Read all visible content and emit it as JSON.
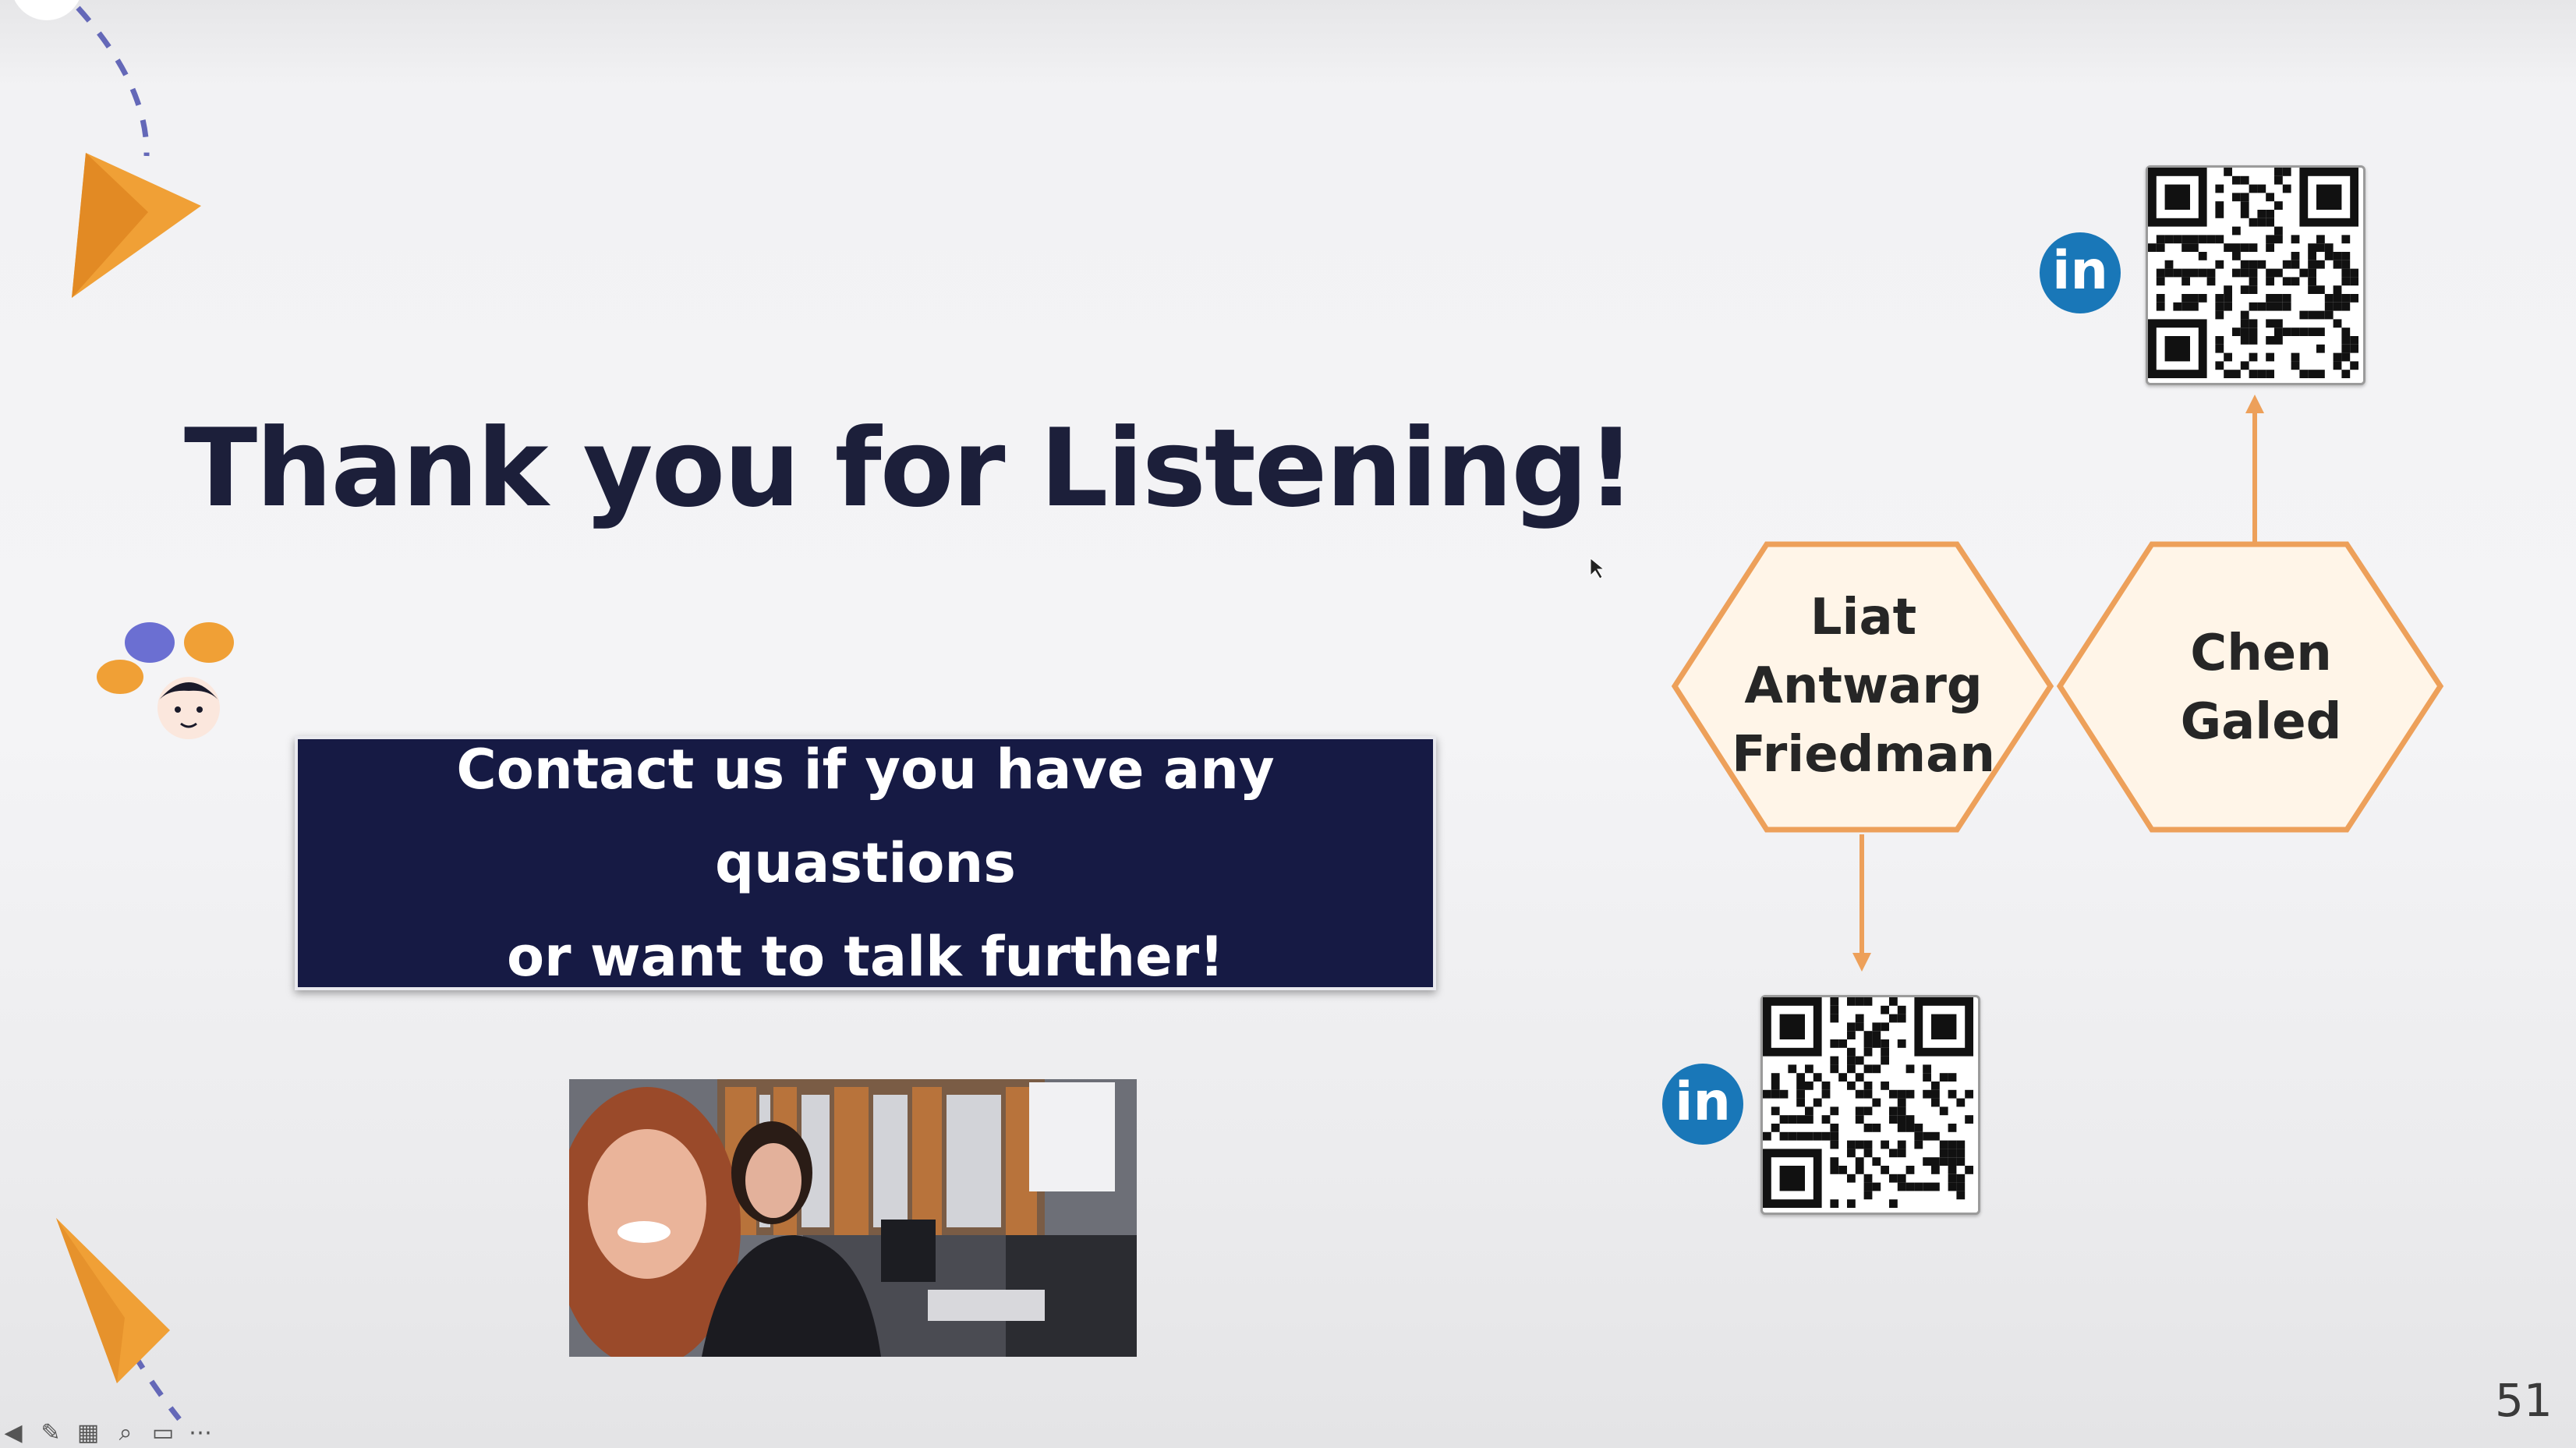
{
  "slide": {
    "title": "Thank you for Listening!",
    "contact_line_1": "Contact us if you have any quastions",
    "contact_line_2": "or want to talk further!",
    "slide_number": "51"
  },
  "people": [
    {
      "name_lines": [
        "Liat",
        "Antwarg",
        "Friedman"
      ]
    },
    {
      "name_lines": [
        "Chen",
        "Galed"
      ]
    }
  ],
  "icons": {
    "linkedin_glyph": "in",
    "linkedin_color": "#1977b8"
  },
  "colors": {
    "accent_orange": "#f0a036",
    "hex_stroke": "#eda05a",
    "hex_fill": "#fff5e8",
    "navy": "#161a44",
    "title": "#1c1f3a"
  },
  "toolbar": {
    "icons": [
      "previous-icon",
      "pen-icon",
      "grid-icon",
      "zoom-icon",
      "subtitles-icon",
      "more-icon"
    ]
  }
}
